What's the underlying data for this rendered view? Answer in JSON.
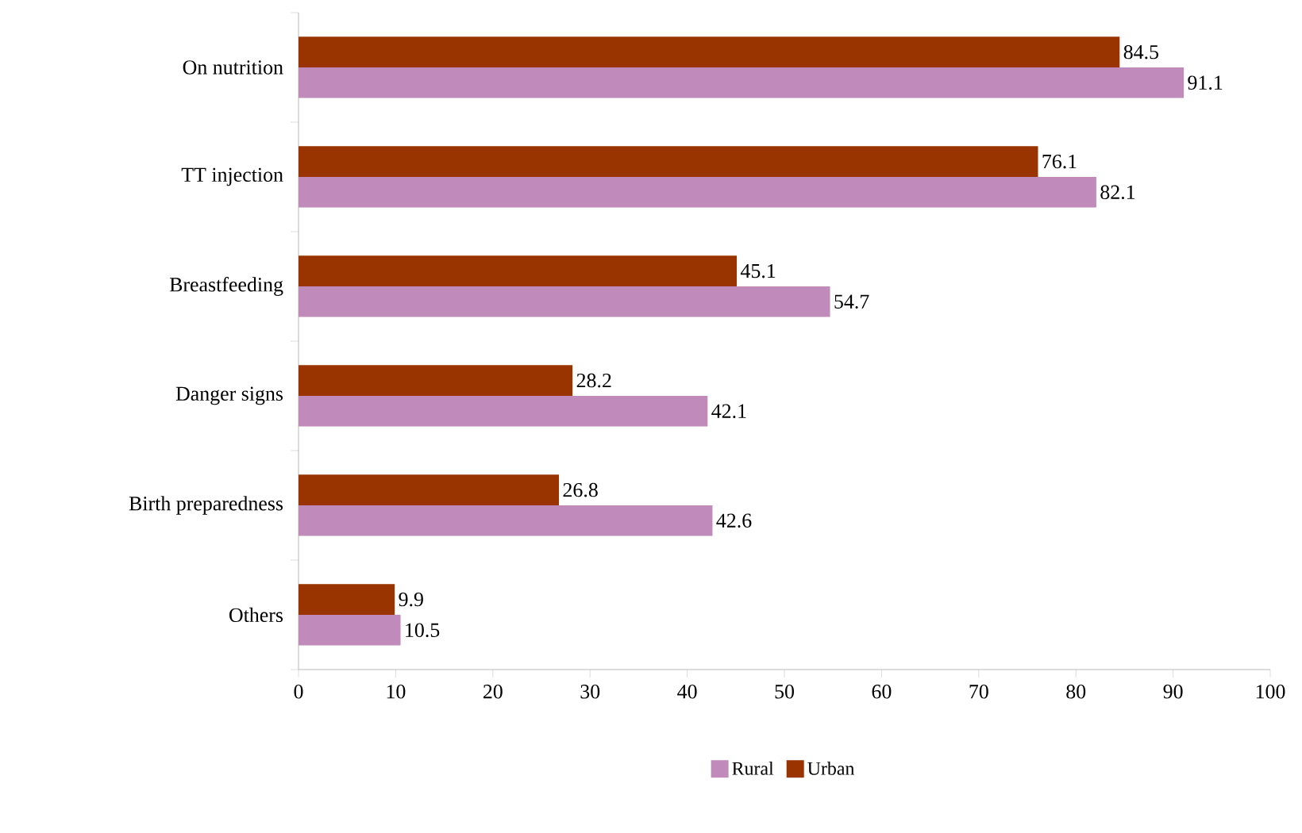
{
  "chart_data": {
    "type": "bar",
    "orientation": "horizontal",
    "categories": [
      "On nutrition",
      "TT injection",
      "Breastfeeding",
      "Danger signs",
      "Birth preparedness",
      "Others"
    ],
    "series": [
      {
        "name": "Rural",
        "color": "#c08bba",
        "values": [
          91.1,
          82.1,
          54.7,
          42.1,
          42.6,
          10.5
        ]
      },
      {
        "name": "Urban",
        "color": "#993300",
        "values": [
          84.5,
          76.1,
          45.1,
          28.2,
          26.8,
          9.9
        ]
      }
    ],
    "xlim": [
      0,
      100
    ],
    "xticks": [
      0,
      10,
      20,
      30,
      40,
      50,
      60,
      70,
      80,
      90,
      100
    ],
    "data_labels": true,
    "legend": "bottom",
    "grid": false
  }
}
